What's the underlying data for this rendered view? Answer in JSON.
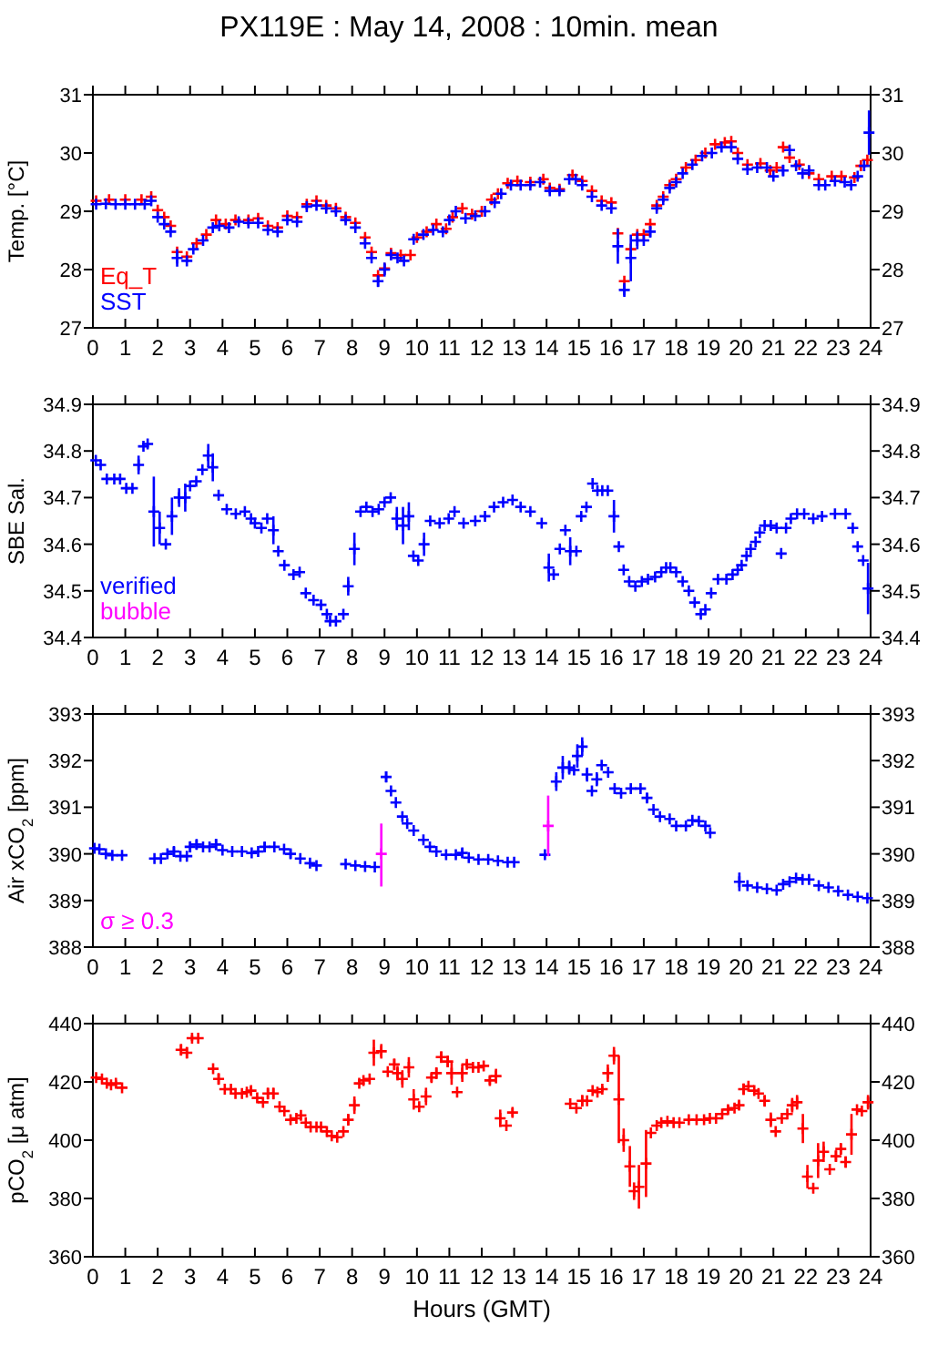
{
  "chart_data": [
    {
      "type": "scatter",
      "title": "PX119E : May 14, 2008 : 10min. mean",
      "ylabel": "Temp. [°C]",
      "xlim": [
        0,
        24
      ],
      "xticks": [
        0,
        1,
        2,
        3,
        4,
        5,
        6,
        7,
        8,
        9,
        10,
        11,
        12,
        13,
        14,
        15,
        16,
        17,
        18,
        19,
        20,
        21,
        22,
        23,
        24
      ],
      "ylim": [
        27,
        31
      ],
      "yticks": [
        27,
        28,
        29,
        30,
        31
      ],
      "y2lim": [
        27,
        31
      ],
      "y2ticks": [
        27,
        28,
        29,
        30,
        31
      ],
      "marker": "cross",
      "legend": "bottom left",
      "series": [
        {
          "name": "Eq_T",
          "color": "#ff0000",
          "x": [
            0.1,
            0.5,
            1.0,
            1.5,
            1.8,
            2.0,
            2.2,
            2.4,
            2.6,
            2.9,
            3.2,
            3.5,
            3.8,
            4.1,
            4.4,
            4.8,
            5.1,
            5.4,
            5.7,
            6.0,
            6.3,
            6.6,
            6.9,
            7.2,
            7.5,
            7.8,
            8.1,
            8.4,
            8.6,
            8.8,
            9.0,
            9.2,
            9.5,
            9.8,
            10.0,
            10.3,
            10.6,
            10.9,
            11.1,
            11.4,
            11.7,
            12.0,
            12.3,
            12.5,
            12.8,
            13.1,
            13.5,
            13.9,
            14.1,
            14.4,
            14.8,
            15.1,
            15.4,
            15.7,
            16.0,
            16.2,
            16.4,
            16.6,
            16.8,
            17.0,
            17.2,
            17.4,
            17.6,
            17.8,
            18.0,
            18.3,
            18.6,
            18.9,
            19.2,
            19.5,
            19.7,
            19.9,
            20.2,
            20.6,
            20.9,
            21.1,
            21.3,
            21.5,
            21.8,
            22.1,
            22.4,
            22.8,
            23.1,
            23.5,
            23.7,
            23.9
          ],
          "values": [
            29.18,
            29.2,
            29.2,
            29.2,
            29.25,
            29.02,
            28.9,
            28.75,
            28.3,
            28.22,
            28.45,
            28.6,
            28.85,
            28.78,
            28.85,
            28.85,
            28.88,
            28.75,
            28.72,
            28.92,
            28.9,
            29.12,
            29.18,
            29.1,
            29.05,
            28.9,
            28.8,
            28.55,
            28.3,
            27.9,
            28.02,
            28.28,
            28.25,
            28.25,
            28.55,
            28.65,
            28.78,
            28.7,
            28.9,
            29.05,
            28.95,
            29.0,
            29.2,
            29.3,
            29.48,
            29.52,
            29.5,
            29.55,
            29.4,
            29.38,
            29.62,
            29.52,
            29.35,
            29.18,
            29.15,
            28.62,
            27.8,
            28.35,
            28.6,
            28.6,
            28.78,
            29.1,
            29.25,
            29.45,
            29.55,
            29.75,
            29.88,
            30.0,
            30.15,
            30.18,
            30.2,
            30.0,
            29.8,
            29.82,
            29.7,
            29.75,
            30.1,
            29.92,
            29.8,
            29.65,
            29.55,
            29.6,
            29.6,
            29.58,
            29.78,
            29.88
          ]
        },
        {
          "name": "SST",
          "color": "#0000ff",
          "x": [
            0.1,
            0.4,
            0.7,
            1.0,
            1.3,
            1.6,
            1.8,
            2.0,
            2.2,
            2.4,
            2.6,
            2.9,
            3.1,
            3.4,
            3.7,
            3.9,
            4.2,
            4.5,
            4.8,
            5.1,
            5.4,
            5.7,
            6.0,
            6.3,
            6.6,
            6.9,
            7.2,
            7.5,
            7.8,
            8.1,
            8.4,
            8.6,
            8.8,
            9.0,
            9.2,
            9.4,
            9.6,
            9.9,
            10.2,
            10.5,
            10.8,
            11.0,
            11.2,
            11.5,
            11.8,
            12.1,
            12.4,
            12.6,
            12.9,
            13.2,
            13.5,
            13.8,
            14.1,
            14.4,
            14.7,
            14.9,
            15.1,
            15.4,
            15.7,
            16.0,
            16.2,
            16.4,
            16.6,
            16.8,
            17.0,
            17.2,
            17.4,
            17.6,
            17.8,
            18.0,
            18.2,
            18.5,
            18.8,
            19.1,
            19.4,
            19.7,
            19.9,
            20.2,
            20.5,
            20.8,
            21.0,
            21.3,
            21.5,
            21.7,
            21.9,
            22.1,
            22.4,
            22.6,
            22.9,
            23.2,
            23.4,
            23.6,
            23.8,
            23.95
          ],
          "values": [
            29.12,
            29.13,
            29.12,
            29.12,
            29.12,
            29.12,
            29.18,
            28.9,
            28.78,
            28.65,
            28.2,
            28.15,
            28.35,
            28.5,
            28.72,
            28.75,
            28.72,
            28.82,
            28.8,
            28.8,
            28.68,
            28.65,
            28.85,
            28.82,
            29.08,
            29.1,
            29.05,
            29.0,
            28.85,
            28.72,
            28.45,
            28.2,
            27.8,
            28.0,
            28.25,
            28.2,
            28.15,
            28.52,
            28.6,
            28.68,
            28.65,
            28.85,
            29.0,
            28.88,
            28.92,
            29.0,
            29.15,
            29.3,
            29.45,
            29.45,
            29.45,
            29.5,
            29.35,
            29.35,
            29.55,
            29.55,
            29.45,
            29.25,
            29.1,
            29.05,
            28.4,
            27.65,
            28.2,
            28.5,
            28.5,
            28.65,
            29.05,
            29.2,
            29.4,
            29.5,
            29.65,
            29.8,
            29.95,
            30.0,
            30.1,
            30.1,
            29.9,
            29.72,
            29.75,
            29.75,
            29.6,
            29.7,
            30.05,
            29.78,
            29.65,
            29.7,
            29.45,
            29.45,
            29.52,
            29.5,
            29.45,
            29.6,
            29.78,
            30.35
          ],
          "errors": [
            null,
            null,
            null,
            null,
            null,
            null,
            null,
            null,
            null,
            null,
            0.15,
            null,
            null,
            null,
            null,
            null,
            null,
            null,
            null,
            null,
            null,
            null,
            null,
            null,
            null,
            null,
            null,
            null,
            null,
            null,
            null,
            null,
            0.1,
            0.12,
            null,
            null,
            null,
            null,
            null,
            null,
            null,
            null,
            null,
            null,
            null,
            null,
            null,
            null,
            null,
            null,
            null,
            null,
            null,
            null,
            null,
            null,
            null,
            null,
            null,
            null,
            0.3,
            0.12,
            0.4,
            0.15,
            null,
            0.1,
            null,
            null,
            null,
            null,
            null,
            null,
            null,
            null,
            null,
            null,
            null,
            null,
            null,
            null,
            null,
            0.1,
            null,
            null,
            null,
            null,
            null,
            null,
            null,
            null,
            null,
            null,
            null,
            0.38
          ]
        }
      ]
    },
    {
      "type": "scatter",
      "ylabel": "SBE Sal.",
      "xlim": [
        0,
        24
      ],
      "xticks": [
        0,
        1,
        2,
        3,
        4,
        5,
        6,
        7,
        8,
        9,
        10,
        11,
        12,
        13,
        14,
        15,
        16,
        17,
        18,
        19,
        20,
        21,
        22,
        23,
        24
      ],
      "ylim": [
        34.4,
        34.9
      ],
      "yticks": [
        34.4,
        34.5,
        34.6,
        34.7,
        34.8,
        34.9
      ],
      "y2lim": [
        34.4,
        34.9
      ],
      "y2ticks": [
        34.4,
        34.5,
        34.6,
        34.7,
        34.8,
        34.9
      ],
      "marker": "cross",
      "legend": "bottom left",
      "series": [
        {
          "name": "verified",
          "color": "#0000ff",
          "x": [
            0.09,
            0.24,
            0.43,
            0.66,
            0.84,
            1.03,
            1.22,
            1.41,
            1.56,
            1.69,
            1.88,
            2.06,
            2.25,
            2.44,
            2.66,
            2.85,
            3.0,
            3.19,
            3.38,
            3.56,
            3.7,
            3.88,
            4.13,
            4.41,
            4.69,
            4.88,
            5.0,
            5.2,
            5.38,
            5.57,
            5.72,
            5.91,
            6.19,
            6.38,
            6.57,
            6.81,
            7.04,
            7.22,
            7.32,
            7.5,
            7.73,
            7.88,
            8.07,
            8.26,
            8.44,
            8.63,
            8.82,
            9.0,
            9.19,
            9.38,
            9.57,
            9.75,
            9.89,
            10.04,
            10.22,
            10.41,
            10.7,
            10.98,
            11.16,
            11.44,
            11.8,
            12.1,
            12.38,
            12.66,
            12.95,
            13.2,
            13.5,
            13.85,
            14.07,
            14.22,
            14.41,
            14.58,
            14.73,
            14.92,
            15.07,
            15.23,
            15.42,
            15.57,
            15.72,
            15.89,
            16.08,
            16.23,
            16.38,
            16.55,
            16.74,
            16.94,
            17.13,
            17.35,
            17.54,
            17.69,
            17.82,
            18.0,
            18.2,
            18.39,
            18.57,
            18.76,
            18.9,
            19.08,
            19.29,
            19.55,
            19.74,
            19.9,
            20.02,
            20.17,
            20.3,
            20.45,
            20.58,
            20.73,
            20.92,
            21.1,
            21.24,
            21.39,
            21.54,
            21.73,
            21.95,
            22.23,
            22.5,
            22.9,
            23.23,
            23.45,
            23.6,
            23.77,
            23.92
          ],
          "values": [
            34.78,
            34.77,
            34.74,
            34.74,
            34.74,
            34.72,
            34.72,
            34.77,
            34.81,
            34.815,
            34.67,
            34.635,
            34.6,
            34.66,
            34.7,
            34.7,
            34.725,
            34.735,
            34.76,
            34.79,
            34.765,
            34.705,
            34.675,
            34.665,
            34.67,
            34.655,
            34.645,
            34.635,
            34.655,
            34.63,
            34.585,
            34.555,
            34.535,
            34.54,
            34.495,
            34.48,
            34.47,
            34.45,
            34.435,
            34.435,
            34.45,
            34.51,
            34.59,
            34.67,
            34.68,
            34.67,
            34.675,
            34.69,
            34.7,
            34.655,
            34.64,
            34.66,
            34.575,
            34.565,
            34.6,
            34.65,
            34.645,
            34.655,
            34.67,
            34.645,
            34.65,
            34.66,
            34.68,
            34.69,
            34.695,
            34.68,
            34.67,
            34.645,
            34.55,
            34.535,
            34.59,
            34.63,
            34.585,
            34.585,
            34.66,
            34.68,
            34.73,
            34.715,
            34.715,
            34.715,
            34.66,
            34.595,
            34.545,
            34.52,
            34.51,
            34.52,
            34.525,
            34.53,
            34.54,
            34.55,
            34.55,
            34.54,
            34.52,
            34.5,
            34.475,
            34.45,
            34.46,
            34.495,
            34.525,
            34.525,
            34.535,
            34.545,
            34.555,
            34.575,
            34.59,
            34.605,
            34.625,
            34.64,
            34.64,
            34.635,
            34.58,
            34.635,
            34.655,
            34.665,
            34.665,
            34.655,
            34.66,
            34.665,
            34.665,
            34.635,
            34.595,
            34.565,
            34.505
          ],
          "errors": [
            null,
            null,
            null,
            null,
            null,
            null,
            null,
            0.02,
            null,
            null,
            0.075,
            0.035,
            null,
            0.04,
            0.02,
            0.03,
            null,
            null,
            null,
            0.025,
            0.03,
            null,
            null,
            null,
            null,
            null,
            null,
            null,
            null,
            0.03,
            null,
            null,
            null,
            null,
            null,
            null,
            null,
            null,
            null,
            null,
            null,
            0.02,
            0.035,
            null,
            null,
            null,
            null,
            null,
            null,
            0.025,
            0.04,
            0.03,
            null,
            null,
            0.025,
            null,
            null,
            null,
            null,
            null,
            null,
            null,
            null,
            null,
            null,
            null,
            null,
            null,
            0.03,
            null,
            null,
            null,
            0.03,
            null,
            null,
            null,
            null,
            null,
            null,
            null,
            0.035,
            null,
            null,
            null,
            null,
            null,
            null,
            null,
            null,
            null,
            null,
            null,
            null,
            null,
            null,
            null,
            null,
            null,
            null,
            null,
            null,
            null,
            null,
            null,
            null,
            null,
            null,
            null,
            null,
            null,
            null,
            null,
            null,
            null,
            null,
            null,
            null,
            null,
            null,
            null,
            null,
            null,
            0.055
          ]
        },
        {
          "name": "bubble",
          "color": "#ff00ff"
        }
      ]
    },
    {
      "type": "scatter",
      "ylabel": "Air xCO$_{2}$ [ppm]",
      "xlim": [
        0,
        24
      ],
      "xticks": [
        0,
        1,
        2,
        3,
        4,
        5,
        6,
        7,
        8,
        9,
        10,
        11,
        12,
        13,
        14,
        15,
        16,
        17,
        18,
        19,
        20,
        21,
        22,
        23,
        24
      ],
      "ylim": [
        388,
        393
      ],
      "yticks": [
        388,
        389,
        390,
        391,
        392,
        393
      ],
      "y2lim": [
        388,
        393
      ],
      "y2ticks": [
        388,
        389,
        390,
        391,
        392,
        393
      ],
      "marker": "cross",
      "legend": "bottom left",
      "series": [
        {
          "color": "#0000ff",
          "x": [
            0.05,
            0.2,
            0.4,
            0.6,
            0.9,
            1.9,
            2.1,
            2.3,
            2.5,
            2.7,
            2.9,
            3.0,
            3.2,
            3.4,
            3.6,
            3.8,
            4.0,
            4.3,
            4.6,
            4.9,
            5.1,
            5.3,
            5.6,
            5.9,
            6.1,
            6.4,
            6.7,
            6.9,
            7.8,
            8.1,
            8.4,
            8.7,
            9.05,
            9.2,
            9.35,
            9.55,
            9.7,
            9.9,
            10.2,
            10.4,
            10.6,
            10.9,
            11.2,
            11.4,
            11.6,
            11.9,
            12.2,
            12.5,
            12.8,
            13.0,
            13.95,
            14.3,
            14.5,
            14.7,
            14.85,
            14.95,
            15.1,
            15.25,
            15.4,
            15.55,
            15.7,
            15.9,
            16.1,
            16.3,
            16.6,
            16.9,
            17.1,
            17.3,
            17.5,
            17.8,
            18.0,
            18.3,
            18.5,
            18.7,
            18.9,
            19.05,
            19.95,
            20.2,
            20.5,
            20.8,
            21.1,
            21.3,
            21.5,
            21.7,
            21.9,
            22.1,
            22.4,
            22.7,
            23.0,
            23.3,
            23.6,
            23.9
          ],
          "values": [
            390.12,
            390.1,
            390.0,
            389.97,
            389.97,
            389.9,
            389.9,
            390.0,
            390.05,
            389.95,
            389.95,
            390.15,
            390.2,
            390.15,
            390.15,
            390.2,
            390.08,
            390.05,
            390.05,
            390.02,
            390.05,
            390.15,
            390.15,
            390.1,
            390.0,
            389.9,
            389.8,
            389.75,
            389.78,
            389.75,
            389.73,
            389.72,
            391.65,
            391.35,
            391.1,
            390.8,
            390.65,
            390.5,
            390.3,
            390.15,
            390.05,
            389.98,
            389.98,
            390.02,
            389.92,
            389.88,
            389.88,
            389.85,
            389.82,
            389.82,
            389.98,
            391.55,
            391.85,
            391.85,
            391.8,
            392.1,
            392.3,
            391.7,
            391.35,
            391.6,
            391.9,
            391.75,
            391.4,
            391.3,
            391.4,
            391.4,
            391.2,
            390.95,
            390.8,
            390.75,
            390.6,
            390.6,
            390.72,
            390.7,
            390.6,
            390.45,
            389.4,
            389.32,
            389.28,
            389.25,
            389.22,
            389.35,
            389.4,
            389.48,
            389.45,
            389.45,
            389.32,
            389.28,
            389.2,
            389.12,
            389.08,
            389.05
          ],
          "errors": [
            null,
            null,
            null,
            null,
            null,
            null,
            null,
            null,
            0.1,
            null,
            null,
            0.12,
            0.1,
            null,
            null,
            0.12,
            null,
            null,
            null,
            null,
            null,
            0.1,
            null,
            null,
            0.1,
            null,
            null,
            null,
            null,
            null,
            null,
            null,
            0.12,
            null,
            null,
            null,
            null,
            null,
            null,
            null,
            null,
            null,
            null,
            0.1,
            null,
            null,
            null,
            null,
            null,
            null,
            null,
            0.2,
            0.25,
            0.15,
            null,
            0.25,
            0.2,
            0.15,
            null,
            0.15,
            null,
            null,
            null,
            null,
            null,
            null,
            0.1,
            null,
            null,
            null,
            null,
            null,
            null,
            null,
            null,
            null,
            0.2,
            null,
            null,
            null,
            null,
            null,
            null,
            null,
            null,
            null,
            null,
            null,
            null,
            null,
            null,
            null
          ]
        },
        {
          "name": "σ ≥ 0.3",
          "color": "#ff00ff",
          "x": [
            8.9,
            14.05
          ],
          "values": [
            390.0,
            390.6
          ],
          "errors": [
            [
              389.3,
              390.65
            ],
            [
              389.95,
              391.25
            ]
          ]
        }
      ]
    },
    {
      "type": "scatter",
      "ylabel": "pCO$_{2}$ [μ atm]",
      "xlabel": "Hours (GMT)",
      "xlim": [
        0,
        24
      ],
      "xticks": [
        0,
        1,
        2,
        3,
        4,
        5,
        6,
        7,
        8,
        9,
        10,
        11,
        12,
        13,
        14,
        15,
        16,
        17,
        18,
        19,
        20,
        21,
        22,
        23,
        24
      ],
      "ylim": [
        360,
        440
      ],
      "yticks": [
        360,
        380,
        400,
        420,
        440
      ],
      "y2lim": [
        360,
        440
      ],
      "y2ticks": [
        360,
        380,
        400,
        420,
        440
      ],
      "marker": "cross",
      "series": [
        {
          "color": "#ff0000",
          "x": [
            0.1,
            0.28,
            0.43,
            0.56,
            0.71,
            0.9,
            2.72,
            2.9,
            3.06,
            3.25,
            3.71,
            3.88,
            4.07,
            4.26,
            4.4,
            4.6,
            4.75,
            4.88,
            5.07,
            5.25,
            5.4,
            5.57,
            5.76,
            5.91,
            6.1,
            6.28,
            6.42,
            6.57,
            6.72,
            6.9,
            7.04,
            7.22,
            7.37,
            7.54,
            7.73,
            7.88,
            8.07,
            8.22,
            8.35,
            8.54,
            8.67,
            8.9,
            9.1,
            9.3,
            9.4,
            9.55,
            9.75,
            9.9,
            10.07,
            10.28,
            10.45,
            10.6,
            10.75,
            10.95,
            11.07,
            11.24,
            11.4,
            11.54,
            11.73,
            11.9,
            12.06,
            12.25,
            12.44,
            12.57,
            12.76,
            12.95,
            14.73,
            14.92,
            15.1,
            15.25,
            15.42,
            15.57,
            15.72,
            15.89,
            16.08,
            16.23,
            16.38,
            16.57,
            16.7,
            16.85,
            17.07,
            17.22,
            17.4,
            17.54,
            17.73,
            17.92,
            18.1,
            18.39,
            18.63,
            18.86,
            19.04,
            19.23,
            19.42,
            19.6,
            19.8,
            19.94,
            20.08,
            20.23,
            20.41,
            20.54,
            20.73,
            20.92,
            21.07,
            21.26,
            21.43,
            21.58,
            21.73,
            21.91,
            22.05,
            22.23,
            22.38,
            22.55,
            22.74,
            22.93,
            23.08,
            23.23,
            23.41,
            23.58,
            23.73,
            23.92
          ],
          "values": [
            421.5,
            421,
            419.5,
            419,
            419.5,
            418,
            431,
            430,
            435,
            435,
            424.5,
            421,
            417.5,
            417.5,
            416,
            416,
            416.5,
            417,
            414.5,
            413,
            416,
            416,
            411.5,
            410,
            407,
            407.5,
            408.5,
            406,
            404.5,
            404.5,
            404.5,
            403,
            401.5,
            401,
            403,
            407,
            412,
            419.5,
            420.5,
            421,
            430,
            430.5,
            423.5,
            426,
            423,
            421,
            425,
            414,
            411.5,
            415,
            421.5,
            423,
            428.5,
            427,
            423,
            416.5,
            423,
            426,
            425,
            425,
            425.5,
            420.5,
            422,
            407.5,
            405,
            409.5,
            412.5,
            411,
            413.5,
            413.5,
            417,
            416.5,
            417.5,
            423,
            429,
            414,
            400,
            391,
            382.5,
            384,
            392,
            402.5,
            405,
            406,
            406.5,
            406,
            406,
            407,
            407,
            407,
            407.5,
            407.5,
            409,
            410.5,
            411,
            412,
            417.5,
            418.5,
            417,
            416,
            413.5,
            407,
            403,
            407.5,
            409,
            412,
            413,
            404,
            387.5,
            383.5,
            393,
            396,
            390,
            394.5,
            397,
            392.5,
            402,
            410.5,
            410,
            413
          ],
          "errors": [
            null,
            null,
            null,
            null,
            1,
            null,
            2,
            2,
            1,
            null,
            null,
            2,
            null,
            null,
            null,
            null,
            null,
            1.5,
            null,
            null,
            2,
            2,
            null,
            null,
            null,
            null,
            null,
            null,
            null,
            null,
            null,
            null,
            null,
            null,
            null,
            2,
            3,
            null,
            null,
            null,
            4.5,
            2.5,
            null,
            2,
            2.5,
            3,
            3.5,
            3.5,
            null,
            3,
            1.5,
            2,
            2,
            2,
            4,
            null,
            3,
            1,
            null,
            null,
            null,
            1.5,
            2.5,
            3,
            null,
            1.5,
            null,
            null,
            2,
            null,
            null,
            null,
            1,
            3,
            3,
            15,
            4,
            7,
            3,
            7.5,
            11.5,
            null,
            null,
            null,
            null,
            null,
            null,
            null,
            null,
            null,
            null,
            null,
            null,
            1.5,
            null,
            1.5,
            2,
            null,
            null,
            null,
            2,
            2.5,
            null,
            null,
            null,
            2.5,
            2.5,
            5,
            4,
            null,
            6,
            3.5,
            null,
            2,
            2,
            2,
            7,
            null,
            null,
            2.5
          ]
        }
      ]
    }
  ]
}
